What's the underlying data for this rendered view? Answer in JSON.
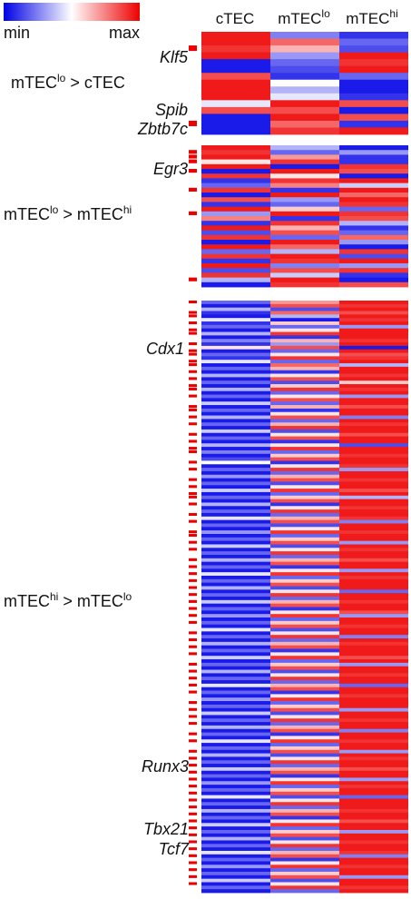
{
  "chart_data": {
    "type": "heatmap",
    "legend": {
      "min_label": "min",
      "max_label": "max",
      "colors": [
        "#0000e6",
        "#ffffff",
        "#ee0000"
      ]
    },
    "columns": [
      {
        "base": "cTEC",
        "sup": ""
      },
      {
        "base": "mTEC",
        "sup": "lo"
      },
      {
        "base": "mTEC",
        "sup": "hi"
      }
    ],
    "groups": [
      {
        "label_base1": "mTEC",
        "label_sup1": "lo",
        "label_mid": " > ",
        "label_base2": "cTEC",
        "label_sup2": "",
        "rows": [
          [
            0.95,
            0.25,
            0.1
          ],
          [
            0.95,
            0.8,
            0.2
          ],
          [
            0.9,
            0.65,
            0.15
          ],
          [
            0.95,
            0.3,
            0.95
          ],
          [
            0.05,
            0.2,
            0.9
          ],
          [
            0.05,
            0.15,
            0.95
          ],
          [
            0.85,
            0.1,
            0.2
          ],
          [
            0.95,
            0.5,
            0.05
          ],
          [
            0.95,
            0.35,
            0.05
          ],
          [
            0.95,
            0.45,
            0.1
          ],
          [
            0.45,
            0.95,
            0.85
          ],
          [
            0.85,
            0.85,
            0.05
          ],
          [
            0.05,
            0.95,
            0.85
          ],
          [
            0.05,
            0.8,
            0.1
          ],
          [
            0.05,
            0.9,
            0.95
          ]
        ],
        "marks": [
          2,
          13
        ],
        "genes": [
          {
            "name": "Klf5",
            "row": 2
          },
          {
            "name": "Spib",
            "row": 10
          },
          {
            "name": "Zbtb7c",
            "row": 13
          }
        ]
      },
      {
        "label_base1": "mTEC",
        "label_sup1": "lo",
        "label_mid": " > ",
        "label_base2": "mTEC",
        "label_sup2": "hi",
        "rows": [
          [
            0.95,
            0.35,
            0.05
          ],
          [
            0.9,
            0.2,
            0.3
          ],
          [
            0.95,
            0.7,
            0.1
          ],
          [
            0.55,
            0.9,
            0.1
          ],
          [
            0.95,
            0.05,
            0.9
          ],
          [
            0.05,
            0.95,
            0.85
          ],
          [
            0.9,
            0.55,
            0.05
          ],
          [
            0.1,
            0.9,
            0.95
          ],
          [
            0.2,
            0.75,
            0.4
          ],
          [
            0.9,
            0.1,
            0.95
          ],
          [
            0.05,
            0.95,
            0.8
          ],
          [
            0.85,
            0.3,
            0.95
          ],
          [
            0.1,
            0.2,
            0.9
          ],
          [
            0.95,
            0.6,
            0.2
          ],
          [
            0.3,
            0.95,
            0.9
          ],
          [
            0.75,
            0.1,
            0.85
          ],
          [
            0.1,
            0.9,
            0.35
          ],
          [
            0.95,
            0.65,
            0.1
          ],
          [
            0.15,
            0.85,
            0.2
          ],
          [
            0.9,
            0.2,
            0.8
          ],
          [
            0.05,
            0.95,
            0.3
          ],
          [
            0.95,
            0.8,
            0.05
          ],
          [
            0.2,
            0.35,
            0.9
          ],
          [
            0.9,
            0.95,
            0.15
          ],
          [
            0.1,
            0.9,
            0.95
          ],
          [
            0.95,
            0.25,
            0.3
          ],
          [
            0.15,
            0.85,
            0.9
          ],
          [
            0.9,
            0.4,
            0.1
          ],
          [
            0.35,
            0.95,
            0.05
          ],
          [
            0.05,
            0.9,
            0.85
          ]
        ],
        "marks": [
          1,
          2,
          3,
          5,
          9,
          14,
          28
        ],
        "genes": [
          {
            "name": "Egr3",
            "row": 4
          }
        ]
      },
      {
        "label_base1": "mTEC",
        "label_sup1": "hi",
        "label_mid": " > ",
        "label_base2": "mTEC",
        "label_sup2": "lo",
        "rows": [
          [
            0.2,
            0.7,
            0.95
          ],
          [
            0.05,
            0.85,
            0.9
          ],
          [
            0.35,
            0.15,
            0.95
          ],
          [
            0.1,
            0.8,
            0.85
          ],
          [
            0.05,
            0.35,
            0.95
          ],
          [
            0.45,
            0.05,
            0.9
          ],
          [
            0.1,
            0.6,
            0.95
          ],
          [
            0.2,
            0.2,
            0.3
          ],
          [
            0.05,
            0.55,
            0.95
          ],
          [
            0.35,
            0.9,
            0.95
          ],
          [
            0.05,
            0.1,
            0.95
          ],
          [
            0.25,
            0.65,
            0.9
          ],
          [
            0.1,
            0.3,
            0.95
          ],
          [
            0.55,
            0.85,
            0.05
          ],
          [
            0.05,
            0.2,
            0.95
          ],
          [
            0.2,
            0.55,
            0.85
          ],
          [
            0.1,
            0.9,
            0.9
          ],
          [
            0.45,
            0.2,
            0.95
          ],
          [
            0.05,
            0.8,
            0.35
          ],
          [
            0.2,
            0.65,
            0.95
          ],
          [
            0.05,
            0.1,
            0.95
          ],
          [
            0.35,
            0.55,
            0.9
          ],
          [
            0.05,
            0.85,
            0.95
          ],
          [
            0.2,
            0.15,
            0.6
          ],
          [
            0.05,
            0.6,
            0.95
          ],
          [
            0.35,
            0.9,
            0.9
          ],
          [
            0.05,
            0.2,
            0.95
          ],
          [
            0.2,
            0.55,
            0.3
          ],
          [
            0.05,
            0.85,
            0.95
          ],
          [
            0.4,
            0.2,
            0.95
          ],
          [
            0.05,
            0.65,
            0.85
          ],
          [
            0.2,
            0.1,
            0.95
          ],
          [
            0.05,
            0.55,
            0.95
          ],
          [
            0.35,
            0.85,
            0.25
          ],
          [
            0.05,
            0.2,
            0.95
          ],
          [
            0.2,
            0.65,
            0.9
          ],
          [
            0.05,
            0.9,
            0.95
          ],
          [
            0.4,
            0.15,
            0.95
          ],
          [
            0.05,
            0.55,
            0.85
          ],
          [
            0.2,
            0.85,
            0.95
          ],
          [
            0.05,
            0.1,
            0.95
          ],
          [
            0.35,
            0.55,
            0.15
          ],
          [
            0.05,
            0.9,
            0.95
          ],
          [
            0.25,
            0.2,
            0.95
          ],
          [
            0.05,
            0.6,
            0.9
          ],
          [
            0.15,
            0.85,
            0.95
          ],
          [
            0.5,
            0.1,
            0.95
          ],
          [
            0.05,
            0.55,
            0.9
          ],
          [
            0.2,
            0.9,
            0.3
          ],
          [
            0.05,
            0.2,
            0.95
          ],
          [
            0.3,
            0.65,
            0.95
          ],
          [
            0.05,
            0.85,
            0.9
          ],
          [
            0.2,
            0.15,
            0.95
          ],
          [
            0.05,
            0.55,
            0.95
          ],
          [
            0.4,
            0.9,
            0.85
          ],
          [
            0.05,
            0.2,
            0.95
          ],
          [
            0.2,
            0.6,
            0.35
          ],
          [
            0.05,
            0.85,
            0.95
          ],
          [
            0.35,
            0.1,
            0.95
          ],
          [
            0.05,
            0.55,
            0.9
          ],
          [
            0.2,
            0.9,
            0.95
          ],
          [
            0.05,
            0.2,
            0.95
          ],
          [
            0.45,
            0.65,
            0.9
          ],
          [
            0.05,
            0.85,
            0.25
          ],
          [
            0.2,
            0.15,
            0.95
          ],
          [
            0.05,
            0.55,
            0.95
          ],
          [
            0.3,
            0.9,
            0.9
          ],
          [
            0.05,
            0.2,
            0.95
          ],
          [
            0.2,
            0.6,
            0.95
          ],
          [
            0.05,
            0.85,
            0.3
          ],
          [
            0.4,
            0.15,
            0.95
          ],
          [
            0.05,
            0.55,
            0.9
          ],
          [
            0.2,
            0.9,
            0.95
          ],
          [
            0.05,
            0.2,
            0.95
          ],
          [
            0.35,
            0.65,
            0.85
          ],
          [
            0.05,
            0.85,
            0.95
          ],
          [
            0.2,
            0.1,
            0.95
          ],
          [
            0.05,
            0.55,
            0.3
          ],
          [
            0.45,
            0.9,
            0.95
          ],
          [
            0.05,
            0.2,
            0.9
          ],
          [
            0.2,
            0.6,
            0.95
          ],
          [
            0.05,
            0.85,
            0.95
          ],
          [
            0.35,
            0.15,
            0.95
          ],
          [
            0.05,
            0.55,
            0.2
          ],
          [
            0.2,
            0.9,
            0.95
          ],
          [
            0.05,
            0.2,
            0.95
          ],
          [
            0.4,
            0.65,
            0.9
          ],
          [
            0.05,
            0.85,
            0.95
          ],
          [
            0.2,
            0.1,
            0.95
          ],
          [
            0.05,
            0.55,
            0.85
          ],
          [
            0.3,
            0.9,
            0.3
          ],
          [
            0.05,
            0.2,
            0.95
          ],
          [
            0.2,
            0.6,
            0.95
          ],
          [
            0.05,
            0.85,
            0.9
          ],
          [
            0.45,
            0.15,
            0.95
          ],
          [
            0.05,
            0.55,
            0.95
          ],
          [
            0.2,
            0.9,
            0.25
          ],
          [
            0.05,
            0.2,
            0.95
          ],
          [
            0.35,
            0.65,
            0.9
          ],
          [
            0.05,
            0.85,
            0.95
          ],
          [
            0.2,
            0.1,
            0.95
          ],
          [
            0.05,
            0.55,
            0.95
          ],
          [
            0.4,
            0.9,
            0.85
          ],
          [
            0.05,
            0.2,
            0.95
          ],
          [
            0.2,
            0.6,
            0.3
          ],
          [
            0.05,
            0.85,
            0.95
          ],
          [
            0.35,
            0.15,
            0.95
          ],
          [
            0.05,
            0.55,
            0.9
          ],
          [
            0.2,
            0.9,
            0.95
          ],
          [
            0.05,
            0.2,
            0.95
          ],
          [
            0.45,
            0.65,
            0.2
          ],
          [
            0.05,
            0.85,
            0.95
          ],
          [
            0.2,
            0.1,
            0.95
          ],
          [
            0.05,
            0.55,
            0.9
          ],
          [
            0.3,
            0.9,
            0.95
          ],
          [
            0.05,
            0.2,
            0.95
          ],
          [
            0.2,
            0.6,
            0.95
          ],
          [
            0.05,
            0.85,
            0.3
          ],
          [
            0.4,
            0.15,
            0.95
          ],
          [
            0.05,
            0.55,
            0.95
          ],
          [
            0.2,
            0.9,
            0.9
          ],
          [
            0.05,
            0.2,
            0.95
          ],
          [
            0.35,
            0.65,
            0.95
          ],
          [
            0.05,
            0.85,
            0.25
          ],
          [
            0.2,
            0.1,
            0.95
          ],
          [
            0.05,
            0.55,
            0.95
          ],
          [
            0.45,
            0.9,
            0.9
          ],
          [
            0.05,
            0.2,
            0.95
          ],
          [
            0.2,
            0.6,
            0.95
          ],
          [
            0.05,
            0.85,
            0.3
          ],
          [
            0.35,
            0.15,
            0.95
          ],
          [
            0.05,
            0.55,
            0.9
          ],
          [
            0.2,
            0.9,
            0.95
          ],
          [
            0.05,
            0.2,
            0.95
          ],
          [
            0.4,
            0.65,
            0.85
          ],
          [
            0.05,
            0.85,
            0.95
          ],
          [
            0.2,
            0.1,
            0.95
          ],
          [
            0.05,
            0.55,
            0.3
          ],
          [
            0.3,
            0.9,
            0.95
          ],
          [
            0.05,
            0.2,
            0.9
          ],
          [
            0.2,
            0.6,
            0.95
          ],
          [
            0.05,
            0.85,
            0.95
          ],
          [
            0.45,
            0.15,
            0.2
          ],
          [
            0.05,
            0.55,
            0.95
          ],
          [
            0.2,
            0.9,
            0.95
          ],
          [
            0.05,
            0.2,
            0.95
          ],
          [
            0.35,
            0.65,
            0.9
          ],
          [
            0.05,
            0.85,
            0.95
          ],
          [
            0.2,
            0.1,
            0.95
          ],
          [
            0.05,
            0.55,
            0.85
          ],
          [
            0.4,
            0.9,
            0.95
          ],
          [
            0.05,
            0.2,
            0.95
          ],
          [
            0.2,
            0.6,
            0.3
          ],
          [
            0.05,
            0.85,
            0.95
          ],
          [
            0.35,
            0.15,
            0.95
          ],
          [
            0.05,
            0.55,
            0.9
          ],
          [
            0.2,
            0.9,
            0.95
          ],
          [
            0.05,
            0.2,
            0.95
          ],
          [
            0.45,
            0.65,
            0.9
          ],
          [
            0.05,
            0.85,
            0.25
          ],
          [
            0.2,
            0.1,
            0.95
          ],
          [
            0.05,
            0.55,
            0.95
          ],
          [
            0.3,
            0.9,
            0.9
          ],
          [
            0.05,
            0.2,
            0.95
          ],
          [
            0.2,
            0.6,
            0.95
          ],
          [
            0.05,
            0.85,
            0.3
          ],
          [
            0.4,
            0.15,
            0.95
          ],
          [
            0.05,
            0.55,
            0.95
          ],
          [
            0.2,
            0.9,
            0.9
          ],
          [
            0.05,
            0.2,
            0.95
          ]
        ],
        "marks": [
          0,
          3,
          4,
          6,
          8,
          9,
          12,
          14,
          15,
          17,
          18,
          20,
          22,
          24,
          25,
          27,
          30,
          31,
          33,
          35,
          38,
          40,
          42,
          43,
          46,
          48,
          51,
          53,
          55,
          56,
          58,
          61,
          63,
          66,
          67,
          69,
          71,
          74,
          76,
          78,
          80,
          82,
          84,
          86,
          88,
          90,
          92,
          95,
          97,
          99,
          101,
          104,
          106,
          108,
          110,
          112,
          115,
          117,
          119,
          121,
          124,
          126,
          129,
          131,
          133,
          135,
          137,
          139,
          141,
          143,
          145,
          147,
          149,
          151,
          153,
          155,
          157,
          159,
          161,
          163,
          165,
          167
        ],
        "genes": [
          {
            "name": "Cdx1",
            "row": 12
          },
          {
            "name": "Runx3",
            "row": 134
          },
          {
            "name": "Tbx21",
            "row": 150
          },
          {
            "name": "Tcf7",
            "row": 156
          }
        ]
      }
    ]
  }
}
